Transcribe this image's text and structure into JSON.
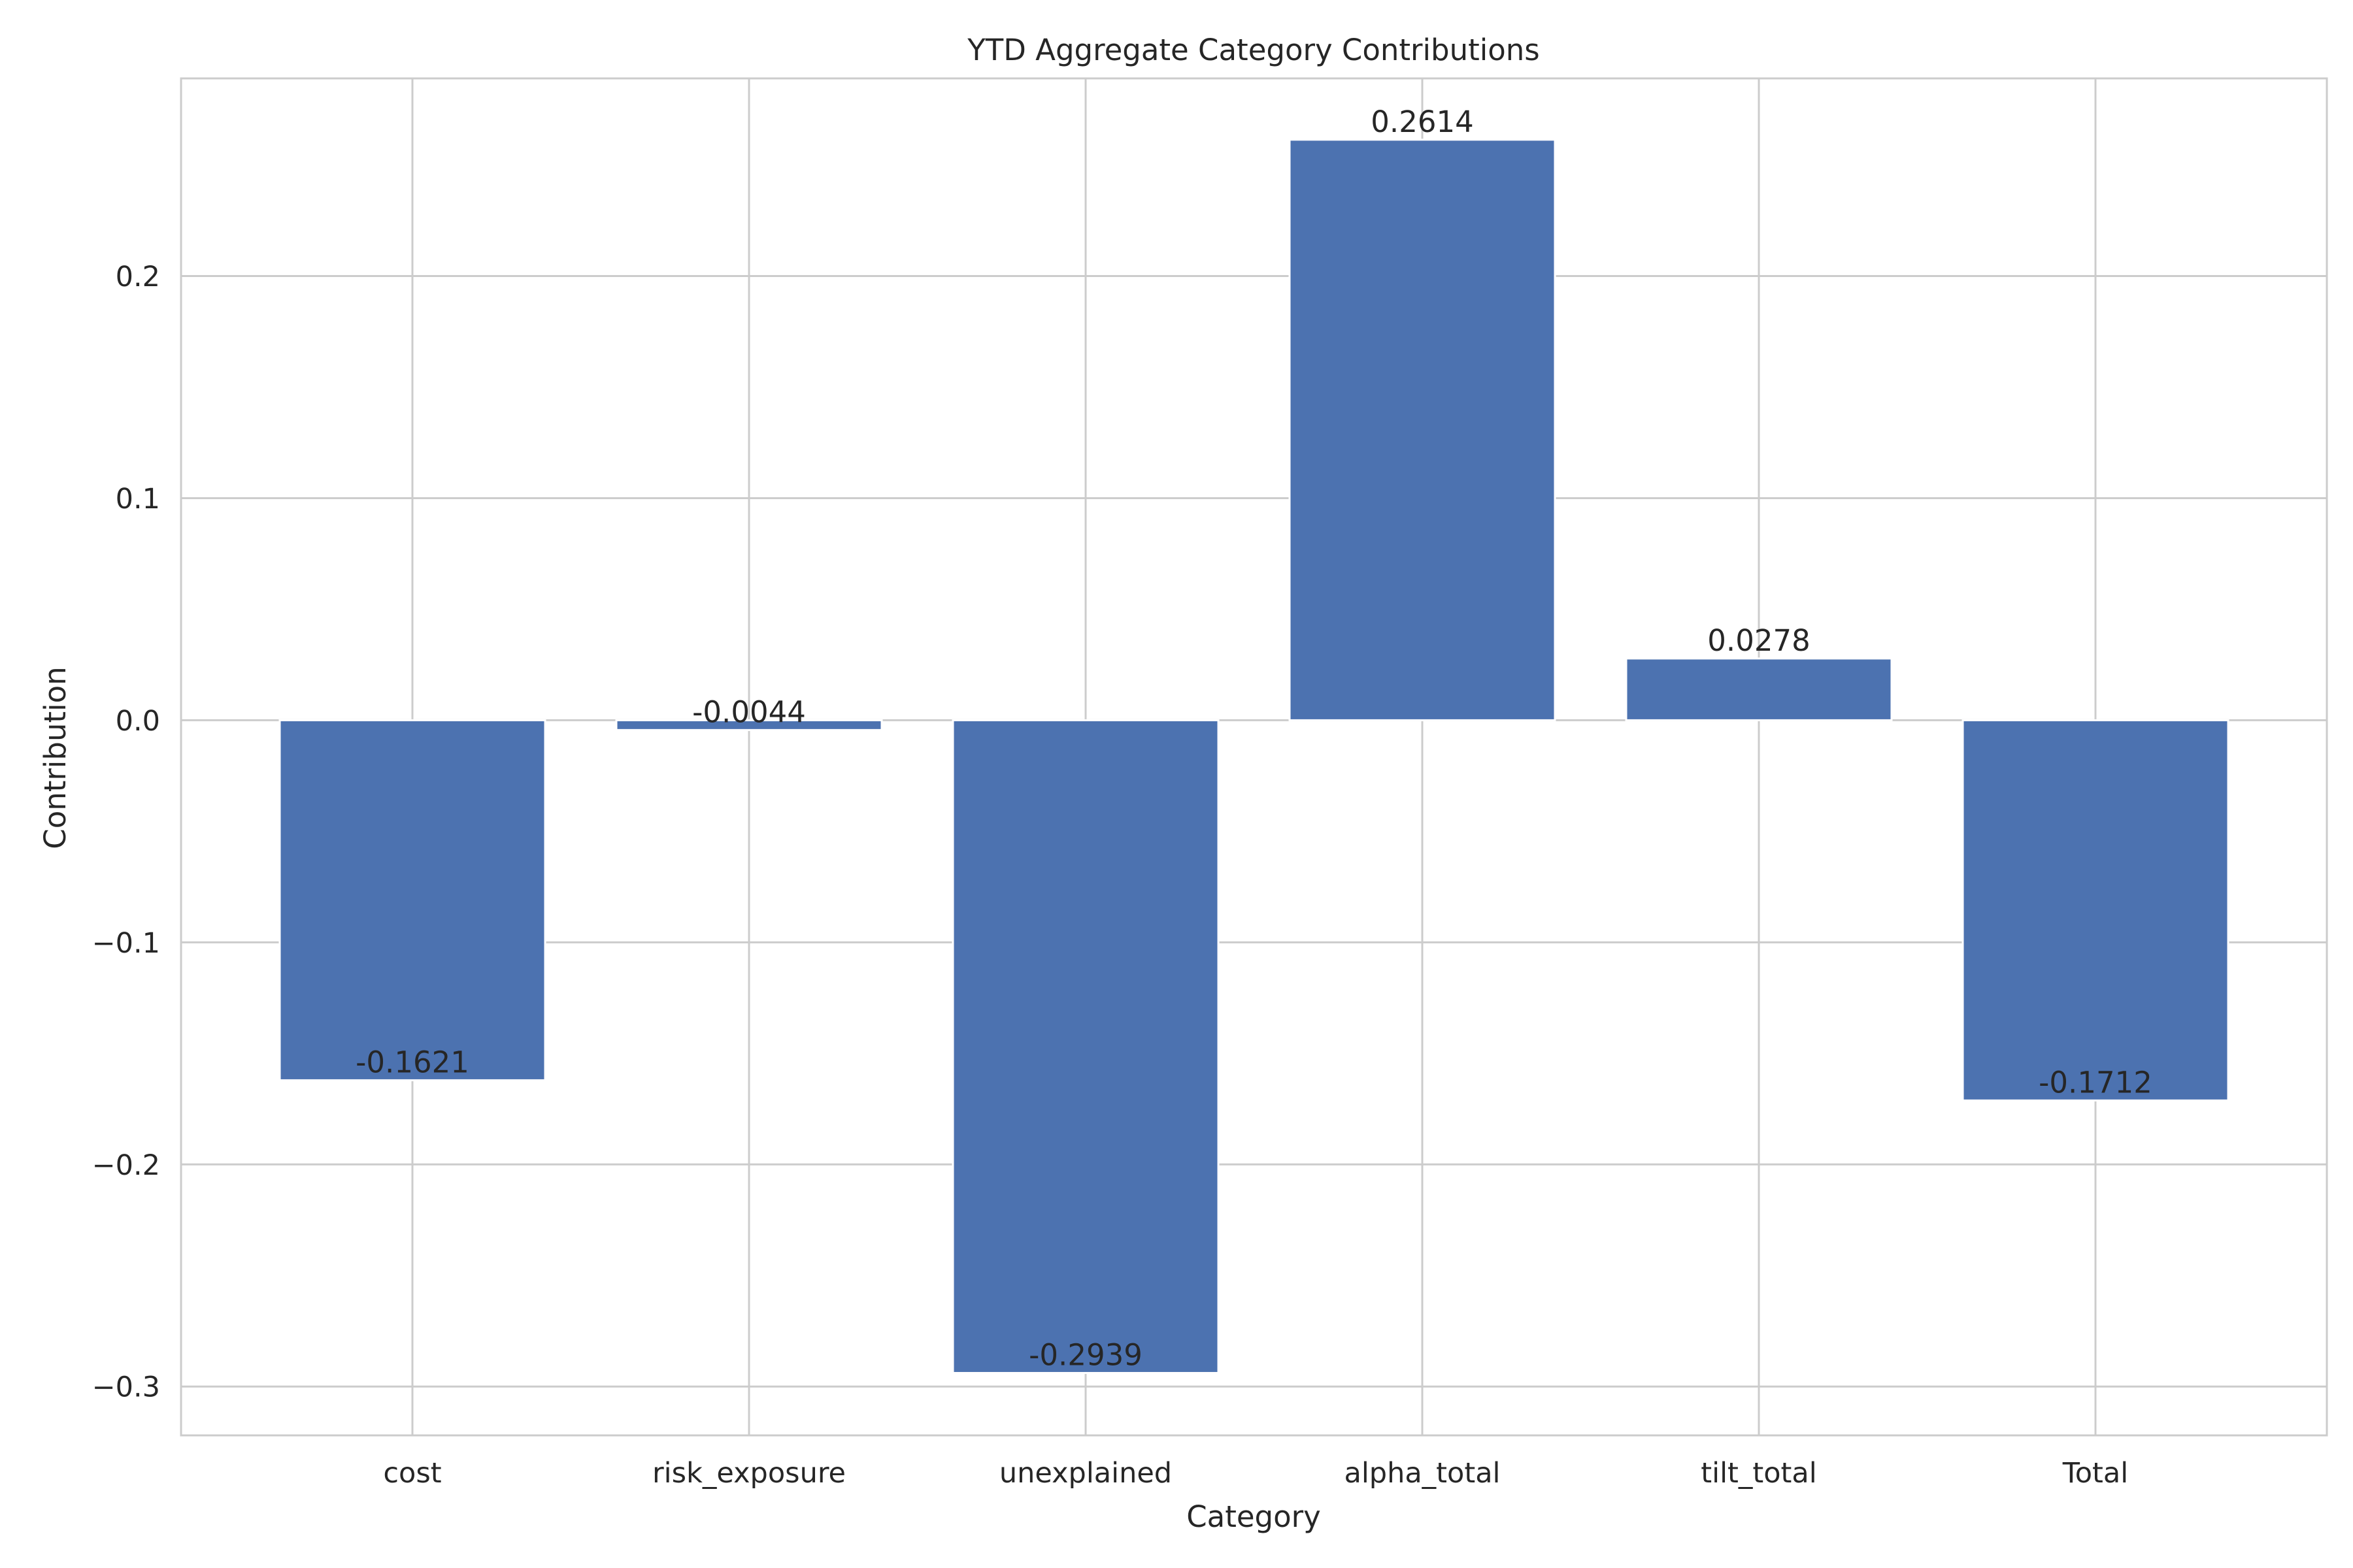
{
  "chart_data": {
    "type": "bar",
    "title": "YTD Aggregate Category Contributions",
    "xlabel": "Category",
    "ylabel": "Contribution",
    "categories": [
      "cost",
      "risk_exposure",
      "unexplained",
      "alpha_total",
      "tilt_total",
      "Total"
    ],
    "values": [
      -0.1621,
      -0.0044,
      -0.2939,
      0.2614,
      0.0278,
      -0.1712
    ],
    "value_labels": [
      "-0.1621",
      "-0.0044",
      "-0.2939",
      "0.2614",
      "0.0278",
      "-0.1712"
    ],
    "ylim": [
      -0.322,
      0.289
    ],
    "yticks": [
      0.2,
      0.1,
      0.0,
      -0.1,
      -0.2,
      -0.3
    ],
    "ytick_labels": [
      "0.2",
      "0.1",
      "0.0",
      "−0.1",
      "−0.2",
      "−0.3"
    ],
    "grid": true,
    "legend": "none",
    "colors": {
      "bar": "#4c72b0",
      "grid": "#cccccc",
      "axis_frame": "#cccccc",
      "text": "#262626",
      "background": "#ffffff"
    }
  }
}
